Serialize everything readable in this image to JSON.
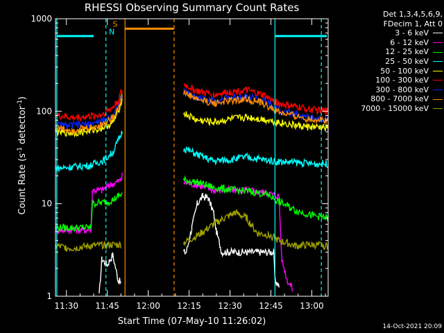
{
  "chart_data": {
    "type": "line",
    "title": "RHESSI Observing Summary Count Rates",
    "xlabel": "Start Time (07-May-10 11:26:02)",
    "ylabel": "Count Rate (s",
    "ylabel_sup": "-1",
    "ylabel_tail": " detector",
    "ylabel_close": ")",
    "ylog": true,
    "ylim": [
      1,
      1000
    ],
    "xlim_minutes": [
      0,
      100
    ],
    "x_ticks": [
      "11:30",
      "11:45",
      "12:00",
      "12:15",
      "12:30",
      "12:45",
      "13:00"
    ],
    "x_tick_minutes": [
      4,
      19,
      34,
      49,
      64,
      79,
      94
    ],
    "y_ticks": [
      "1",
      "10",
      "100",
      "1000"
    ],
    "y_tick_values": [
      1,
      10,
      100,
      1000
    ],
    "legend_header": [
      "Det 1,3,4,5,6,9,",
      "FDecim 1, Att 0"
    ],
    "series": [
      {
        "name": "3 - 6 keV",
        "color": "#ffffff",
        "segments": [
          [
            [
              16,
              1.0
            ],
            [
              17,
              2.5
            ],
            [
              19,
              2.2
            ],
            [
              21,
              2.8
            ],
            [
              23,
              1.5
            ],
            [
              24,
              1.4
            ]
          ],
          [
            [
              47,
              3.0
            ],
            [
              48,
              3.0
            ],
            [
              50,
              5.5
            ],
            [
              52,
              10
            ],
            [
              54,
              12
            ],
            [
              56,
              11.5
            ],
            [
              58,
              8
            ],
            [
              59,
              5
            ],
            [
              61,
              3
            ],
            [
              64,
              3
            ],
            [
              70,
              3
            ],
            [
              76,
              3
            ],
            [
              80,
              3
            ],
            [
              80.5,
              1.5
            ],
            [
              82,
              1.3
            ]
          ]
        ]
      },
      {
        "name": "6 - 12 keV",
        "color": "#ff00ff",
        "segments": [
          [
            [
              0,
              5.2
            ],
            [
              13,
              5.2
            ],
            [
              13.5,
              14
            ],
            [
              17,
              14
            ],
            [
              20,
              16
            ],
            [
              24,
              18
            ],
            [
              24.5,
              20
            ]
          ],
          [
            [
              47,
              17
            ],
            [
              52,
              16
            ],
            [
              58,
              14
            ],
            [
              64,
              14
            ],
            [
              70,
              14
            ],
            [
              78,
              13
            ],
            [
              82,
              12
            ],
            [
              83,
              2.5
            ],
            [
              85,
              1.5
            ],
            [
              87,
              1.2
            ]
          ]
        ]
      },
      {
        "name": "12 - 25 keV",
        "color": "#00ff00",
        "segments": [
          [
            [
              0,
              5.5
            ],
            [
              13,
              5.5
            ],
            [
              13.5,
              10
            ],
            [
              19,
              10.5
            ],
            [
              21,
              11
            ],
            [
              23,
              12
            ],
            [
              24.5,
              13
            ]
          ],
          [
            [
              47,
              18
            ],
            [
              52,
              17
            ],
            [
              58,
              15
            ],
            [
              66,
              14
            ],
            [
              72,
              13.5
            ],
            [
              78,
              12.5
            ],
            [
              82,
              10.5
            ],
            [
              88,
              8.5
            ],
            [
              94,
              7.5
            ],
            [
              100,
              7
            ]
          ]
        ]
      },
      {
        "name": "25 - 50 keV",
        "color": "#00ffff",
        "segments": [
          [
            [
              0,
              24
            ],
            [
              6,
              25
            ],
            [
              13,
              26
            ],
            [
              18,
              30
            ],
            [
              21,
              36
            ],
            [
              23,
              48
            ],
            [
              24.5,
              60
            ]
          ],
          [
            [
              47,
              40
            ],
            [
              52,
              34
            ],
            [
              58,
              29
            ],
            [
              64,
              30
            ],
            [
              70,
              32
            ],
            [
              76,
              30
            ],
            [
              82,
              28.5
            ],
            [
              88,
              28
            ],
            [
              94,
              27
            ],
            [
              100,
              27
            ]
          ]
        ]
      },
      {
        "name": "50 - 100 keV",
        "color": "#ffff00",
        "segments": [
          [
            [
              0,
              60
            ],
            [
              6,
              58
            ],
            [
              13,
              62
            ],
            [
              17,
              66
            ],
            [
              21,
              75
            ],
            [
              23,
              100
            ],
            [
              24.5,
              140
            ]
          ],
          [
            [
              47,
              95
            ],
            [
              52,
              80
            ],
            [
              58,
              76
            ],
            [
              64,
              82
            ],
            [
              70,
              86
            ],
            [
              76,
              82
            ],
            [
              82,
              76
            ],
            [
              88,
              70
            ],
            [
              94,
              67
            ],
            [
              100,
              66
            ]
          ]
        ]
      },
      {
        "name": "100 - 300 keV",
        "color": "#ff0000",
        "segments": [
          [
            [
              0,
              90
            ],
            [
              6,
              85
            ],
            [
              13,
              88
            ],
            [
              17,
              92
            ],
            [
              21,
              110
            ],
            [
              23,
              130
            ],
            [
              24.5,
              170
            ]
          ],
          [
            [
              47,
              195
            ],
            [
              52,
              165
            ],
            [
              58,
              150
            ],
            [
              64,
              162
            ],
            [
              70,
              168
            ],
            [
              76,
              150
            ],
            [
              82,
              120
            ],
            [
              88,
              112
            ],
            [
              94,
              104
            ],
            [
              100,
              100
            ]
          ]
        ]
      },
      {
        "name": "300 - 800 keV",
        "color": "#0022ff",
        "segments": [
          [
            [
              0,
              70
            ],
            [
              6,
              70
            ],
            [
              13,
              73
            ],
            [
              17,
              78
            ],
            [
              21,
              90
            ],
            [
              23,
              115
            ],
            [
              24.5,
              150
            ]
          ],
          [
            [
              47,
              165
            ],
            [
              52,
              140
            ],
            [
              58,
              130
            ],
            [
              64,
              140
            ],
            [
              70,
              145
            ],
            [
              76,
              132
            ],
            [
              82,
              102
            ],
            [
              88,
              92
            ],
            [
              94,
              85
            ],
            [
              100,
              82
            ]
          ]
        ]
      },
      {
        "name": "800 - 7000 keV",
        "color": "#ff8c00",
        "segments": [
          [
            [
              0,
              66
            ],
            [
              6,
              63
            ],
            [
              13,
              66
            ],
            [
              17,
              72
            ],
            [
              21,
              85
            ],
            [
              23,
              110
            ],
            [
              24.5,
              150
            ]
          ],
          [
            [
              47,
              160
            ],
            [
              52,
              135
            ],
            [
              58,
              122
            ],
            [
              64,
              130
            ],
            [
              70,
              135
            ],
            [
              76,
              122
            ],
            [
              82,
              97
            ],
            [
              88,
              88
            ],
            [
              94,
              82
            ],
            [
              100,
              80
            ]
          ]
        ]
      },
      {
        "name": "7000 - 15000 keV",
        "color": "#a0a000",
        "segments": [
          [
            [
              0,
              3.5
            ],
            [
              6,
              3.3
            ],
            [
              13,
              3.5
            ],
            [
              19,
              3.6
            ],
            [
              24,
              3.6
            ]
          ],
          [
            [
              47,
              3.8
            ],
            [
              52,
              4.5
            ],
            [
              58,
              6
            ],
            [
              62,
              7
            ],
            [
              66,
              8
            ],
            [
              70,
              7
            ],
            [
              74,
              4.8
            ],
            [
              78,
              4.6
            ],
            [
              82,
              4
            ],
            [
              88,
              3.5
            ],
            [
              94,
              3.6
            ],
            [
              100,
              3.5
            ]
          ]
        ]
      }
    ],
    "saa_markers": [
      {
        "label": "N",
        "color": "#00ffff"
      },
      {
        "label": "S",
        "color": "#ff8c00"
      }
    ],
    "timestamp": "14-Oct-2021 20:09"
  }
}
